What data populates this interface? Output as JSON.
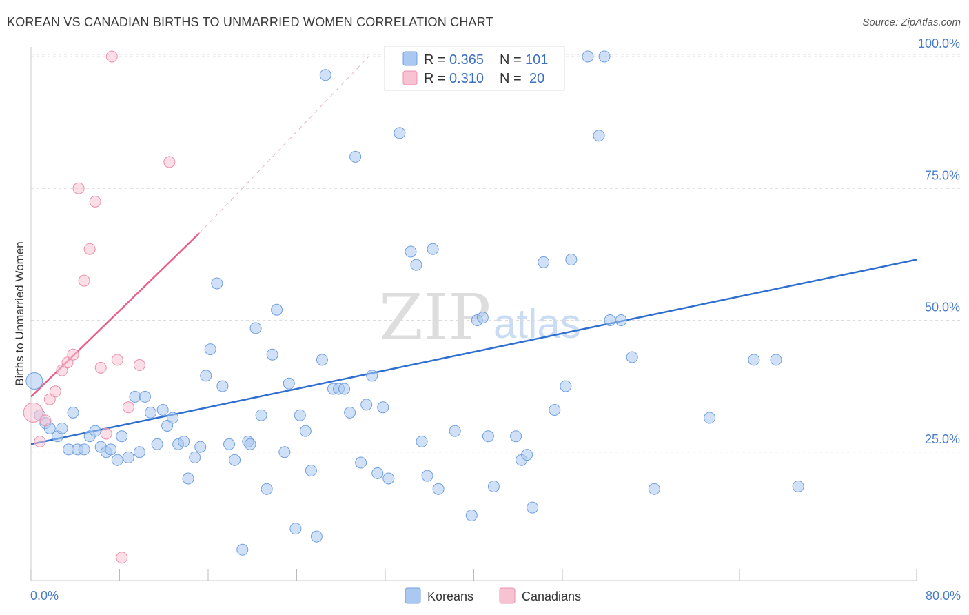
{
  "title": "KOREAN VS CANADIAN BIRTHS TO UNMARRIED WOMEN CORRELATION CHART",
  "source": "Source: ZipAtlas.com",
  "watermark": {
    "zip": "ZIP",
    "atlas": "atlas"
  },
  "colors": {
    "korean_fill": "#aac8f0",
    "korean_stroke": "#6f9fe0",
    "korean_line": "#2f6fd0",
    "canadian_fill": "#f7c2d2",
    "canadian_stroke": "#ec8fab",
    "canadian_line": "#e8608a",
    "tick_color": "#4a7cc9"
  },
  "legend": {
    "rows": [
      {
        "r_label": "R =",
        "r_value": "0.365",
        "n_label": "N =",
        "n_value": "101"
      },
      {
        "r_label": "R =",
        "r_value": "0.310",
        "n_label": "N =",
        "n_value": "20"
      }
    ]
  },
  "bottom_legend": [
    "Koreans",
    "Canadians"
  ],
  "chart_data": {
    "type": "scatter",
    "title": "KOREAN VS CANADIAN BIRTHS TO UNMARRIED WOMEN CORRELATION CHART",
    "xlabel": "",
    "ylabel": "Births to Unmarried Women",
    "xlim": [
      0,
      80
    ],
    "ylim": [
      0,
      101
    ],
    "x_tick_labels": [
      "0.0%",
      "80.0%"
    ],
    "y_ticks": [
      25,
      50,
      75,
      100
    ],
    "y_tick_labels": [
      "25.0%",
      "50.0%",
      "75.0%",
      "100.0%"
    ],
    "grid": true,
    "legend_position": "top-center",
    "series": [
      {
        "name": "Koreans",
        "r": 0.365,
        "n": 101,
        "trend": {
          "x": [
            0,
            80
          ],
          "y": [
            26.5,
            61.5
          ]
        },
        "points": [
          [
            0.3,
            38.5
          ],
          [
            0.8,
            32
          ],
          [
            1.3,
            30.5
          ],
          [
            1.7,
            29.5
          ],
          [
            2.4,
            28
          ],
          [
            2.8,
            29.5
          ],
          [
            3.4,
            25.5
          ],
          [
            3.8,
            32.5
          ],
          [
            4.2,
            25.5
          ],
          [
            4.8,
            25.5
          ],
          [
            5.3,
            28
          ],
          [
            5.8,
            29
          ],
          [
            6.3,
            26
          ],
          [
            6.8,
            25
          ],
          [
            7.2,
            25.5
          ],
          [
            7.8,
            23.5
          ],
          [
            8.2,
            28
          ],
          [
            8.8,
            24
          ],
          [
            9.4,
            35.5
          ],
          [
            9.8,
            25
          ],
          [
            10.3,
            35.5
          ],
          [
            10.8,
            32.5
          ],
          [
            11.4,
            26.5
          ],
          [
            11.9,
            33
          ],
          [
            12.3,
            30
          ],
          [
            12.8,
            31.5
          ],
          [
            13.3,
            26.5
          ],
          [
            13.8,
            27
          ],
          [
            14.2,
            20
          ],
          [
            14.8,
            24
          ],
          [
            15.3,
            26
          ],
          [
            15.8,
            39.5
          ],
          [
            16.2,
            44.5
          ],
          [
            16.8,
            57
          ],
          [
            17.3,
            37.5
          ],
          [
            17.9,
            26.5
          ],
          [
            18.4,
            23.5
          ],
          [
            19.1,
            6.5
          ],
          [
            19.6,
            27
          ],
          [
            19.8,
            26.5
          ],
          [
            20.3,
            48.5
          ],
          [
            20.8,
            32
          ],
          [
            21.3,
            18
          ],
          [
            21.8,
            43.5
          ],
          [
            22.2,
            52
          ],
          [
            22.9,
            25
          ],
          [
            23.3,
            38
          ],
          [
            23.9,
            10.5
          ],
          [
            24.3,
            32
          ],
          [
            24.8,
            29
          ],
          [
            25.3,
            21.5
          ],
          [
            25.8,
            9
          ],
          [
            26.3,
            42.5
          ],
          [
            26.6,
            96.5
          ],
          [
            27.3,
            37
          ],
          [
            27.8,
            37
          ],
          [
            28.3,
            37
          ],
          [
            28.8,
            32.5
          ],
          [
            29.3,
            81
          ],
          [
            29.8,
            23
          ],
          [
            30.3,
            34
          ],
          [
            30.8,
            39.5
          ],
          [
            31.3,
            21
          ],
          [
            31.8,
            33.5
          ],
          [
            32.3,
            20
          ],
          [
            32.8,
            100
          ],
          [
            33.3,
            85.5
          ],
          [
            34.3,
            63
          ],
          [
            34.8,
            60.5
          ],
          [
            35.3,
            27
          ],
          [
            35.8,
            20.5
          ],
          [
            36.3,
            63.5
          ],
          [
            36.8,
            18
          ],
          [
            37.8,
            100
          ],
          [
            38.3,
            29
          ],
          [
            39.8,
            13
          ],
          [
            40.3,
            50
          ],
          [
            40.8,
            50.5
          ],
          [
            41.3,
            28
          ],
          [
            41.8,
            18.5
          ],
          [
            42.3,
            100
          ],
          [
            42.8,
            100
          ],
          [
            43.8,
            28
          ],
          [
            44.3,
            23.5
          ],
          [
            44.8,
            24.5
          ],
          [
            45.3,
            14.5
          ],
          [
            46.3,
            61
          ],
          [
            47.3,
            33
          ],
          [
            48.3,
            37.5
          ],
          [
            48.8,
            61.5
          ],
          [
            50.3,
            100
          ],
          [
            51.3,
            85
          ],
          [
            51.8,
            100
          ],
          [
            52.3,
            50
          ],
          [
            53.3,
            50
          ],
          [
            54.3,
            43
          ],
          [
            56.3,
            18
          ],
          [
            61.3,
            31.5
          ],
          [
            65.3,
            42.5
          ],
          [
            67.3,
            42.5
          ],
          [
            69.3,
            18.5
          ]
        ]
      },
      {
        "name": "Canadians",
        "r": 0.31,
        "n": 20,
        "trend": {
          "x": [
            0,
            15.2
          ],
          "y": [
            35.5,
            66.5
          ]
        },
        "trend_dashed_ext": {
          "x": [
            15.2,
            30.5
          ],
          "y": [
            66.5,
            100
          ]
        },
        "points": [
          [
            0.2,
            32.5
          ],
          [
            0.8,
            27
          ],
          [
            1.3,
            31
          ],
          [
            1.7,
            35
          ],
          [
            2.2,
            36.5
          ],
          [
            2.8,
            40.5
          ],
          [
            3.3,
            42
          ],
          [
            3.8,
            43.5
          ],
          [
            4.3,
            75
          ],
          [
            4.8,
            57.5
          ],
          [
            5.3,
            63.5
          ],
          [
            5.8,
            72.5
          ],
          [
            6.3,
            41
          ],
          [
            6.8,
            28.5
          ],
          [
            7.3,
            100
          ],
          [
            7.8,
            42.5
          ],
          [
            8.2,
            5
          ],
          [
            8.8,
            33.5
          ],
          [
            9.8,
            41.5
          ],
          [
            12.5,
            80
          ]
        ]
      }
    ]
  }
}
